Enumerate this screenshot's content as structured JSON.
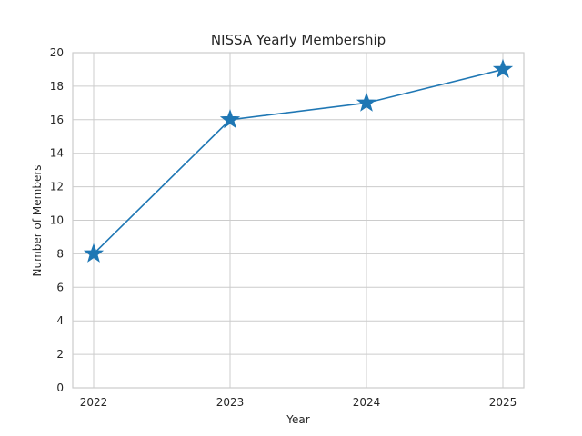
{
  "chart_data": {
    "type": "line",
    "title": "NISSA Yearly Membership",
    "xlabel": "Year",
    "ylabel": "Number of Members",
    "categories": [
      "2022",
      "2023",
      "2024",
      "2025"
    ],
    "series": [
      {
        "values": [
          8,
          16,
          17,
          19
        ],
        "color": "#1f77b4",
        "marker": "star"
      }
    ],
    "ylim": [
      0,
      20
    ],
    "yticks": [
      0,
      2,
      4,
      6,
      8,
      10,
      12,
      14,
      16,
      18,
      20
    ],
    "grid": true,
    "legend": "none"
  }
}
